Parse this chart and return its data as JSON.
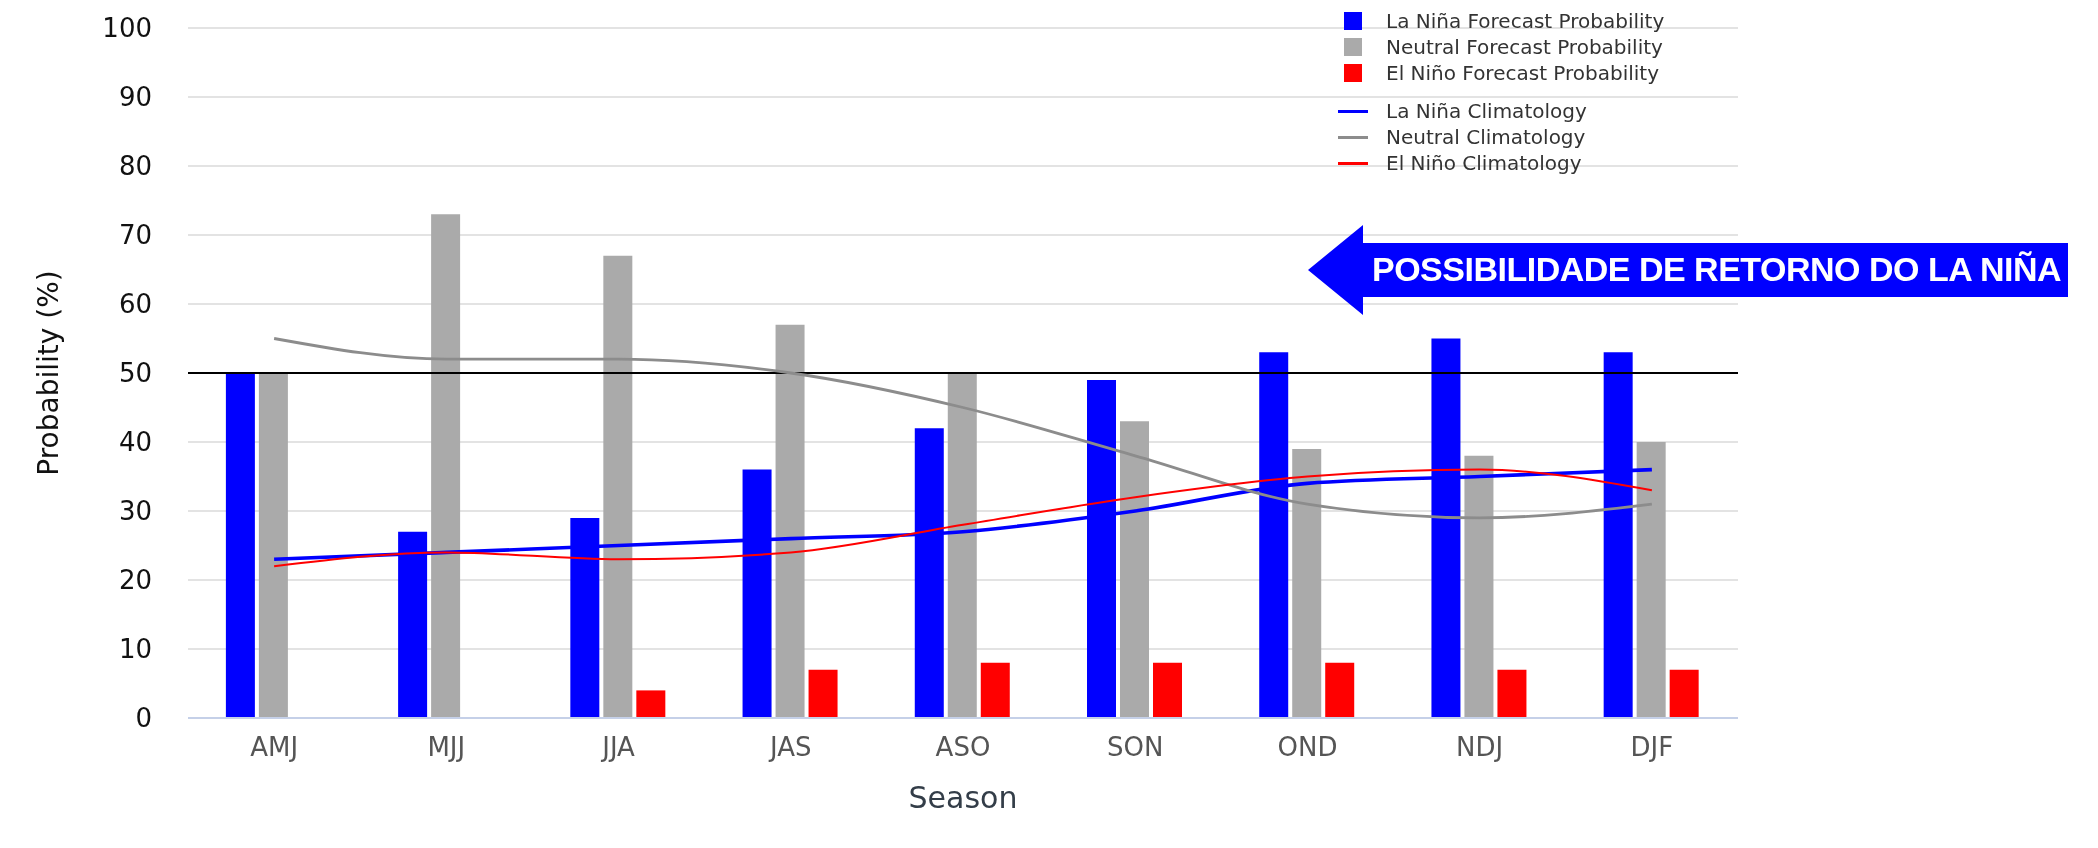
{
  "chart_data": {
    "type": "bar",
    "xlabel": "Season",
    "ylabel": "Probability (%)",
    "categories": [
      "AMJ",
      "MJJ",
      "JJA",
      "JAS",
      "ASO",
      "SON",
      "OND",
      "NDJ",
      "DJF"
    ],
    "series": [
      {
        "name": "La Niña Forecast Probability",
        "color": "#0000ff",
        "values": [
          50,
          27,
          29,
          36,
          42,
          49,
          53,
          55,
          53
        ]
      },
      {
        "name": "Neutral Forecast Probability",
        "color": "#aaaaaa",
        "values": [
          50,
          73,
          67,
          57,
          50,
          43,
          39,
          38,
          40
        ]
      },
      {
        "name": "El Niño Forecast Probability",
        "color": "#ff0000",
        "values": [
          0,
          0,
          4,
          7,
          8,
          8,
          8,
          7,
          7
        ]
      },
      {
        "type": "line",
        "name": "La Niña Climatology",
        "color": "#0000ff",
        "values": [
          23,
          24,
          25,
          26,
          27,
          30,
          34,
          35,
          36
        ]
      },
      {
        "type": "line",
        "name": "Neutral Climatology",
        "color": "#8c8c8c",
        "values": [
          55,
          52,
          52,
          50,
          45,
          38,
          31,
          29,
          31
        ]
      },
      {
        "type": "line",
        "name": "El Niño Climatology",
        "color": "#ff0000",
        "values": [
          22,
          24,
          23,
          24,
          28,
          32,
          35,
          36,
          33
        ]
      }
    ],
    "ylim": [
      0,
      100
    ],
    "yticks": [
      0,
      10,
      20,
      30,
      40,
      50,
      60,
      70,
      80,
      90,
      100
    ],
    "grid": "y",
    "legend": "top right",
    "ref_lines": [
      {
        "axis": "y",
        "value": 50,
        "color": "#000000"
      }
    ],
    "annotations": [
      "POSSIBILIDADE DE RETORNO DO LA NIÑA"
    ]
  }
}
